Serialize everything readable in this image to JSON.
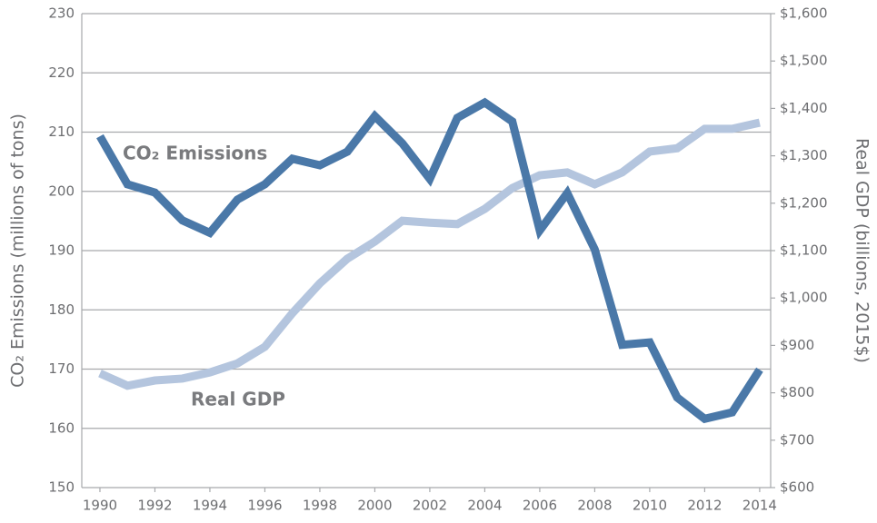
{
  "chart_data": {
    "type": "line",
    "x": [
      1990,
      1991,
      1992,
      1993,
      1994,
      1995,
      1996,
      1997,
      1998,
      1999,
      2000,
      2001,
      2002,
      2003,
      2004,
      2005,
      2006,
      2007,
      2008,
      2009,
      2010,
      2011,
      2012,
      2013,
      2014
    ],
    "series": [
      {
        "name": "CO₂ Emissions",
        "color": "#4a78a8",
        "values": [
          209.3,
          201.2,
          199.8,
          195.1,
          193,
          198.6,
          201.2,
          205.5,
          204.4,
          206.7,
          212.7,
          208.1,
          202.1,
          212.4,
          215,
          211.8,
          193.4,
          199.7,
          190.2,
          174.1,
          174.5,
          165.2,
          161.6,
          162.7,
          169.9
        ]
      },
      {
        "name": "Real GDP",
        "color": "#b4c5de",
        "axis": "y2",
        "values": [
          841,
          815,
          826,
          830,
          843,
          862,
          897,
          968,
          1031,
          1083,
          1119,
          1163,
          1159,
          1156,
          1188,
          1232,
          1259,
          1265,
          1240,
          1265,
          1309,
          1316,
          1357,
          1357,
          1370
        ]
      }
    ],
    "ylabel": "CO₂ Emissions (millions of tons)",
    "y2label": "Real GDP (billions, 2015$)",
    "xlim": [
      1989.34,
      2014.4
    ],
    "xticks": [
      1990,
      1992,
      1994,
      1996,
      1998,
      2000,
      2002,
      2004,
      2006,
      2008,
      2010,
      2012,
      2014
    ],
    "ylim": [
      150,
      230
    ],
    "yticks": [
      150,
      160,
      170,
      180,
      190,
      200,
      210,
      220,
      230
    ],
    "y2lim": [
      600,
      1600
    ],
    "y2ticks": [
      {
        "value": 600,
        "label": "$600"
      },
      {
        "value": 700,
        "label": "$700"
      },
      {
        "value": 800,
        "label": "$800"
      },
      {
        "value": 900,
        "label": "$900"
      },
      {
        "value": 1000,
        "label": "$1,000"
      },
      {
        "value": 1100,
        "label": "$1,100"
      },
      {
        "value": 1200,
        "label": "$1,200"
      },
      {
        "value": 1300,
        "label": "$1,300"
      },
      {
        "value": 1400,
        "label": "$1,400"
      },
      {
        "value": 1500,
        "label": "$1,500"
      },
      {
        "value": 1600,
        "label": "$1,600"
      }
    ],
    "grid": true
  }
}
